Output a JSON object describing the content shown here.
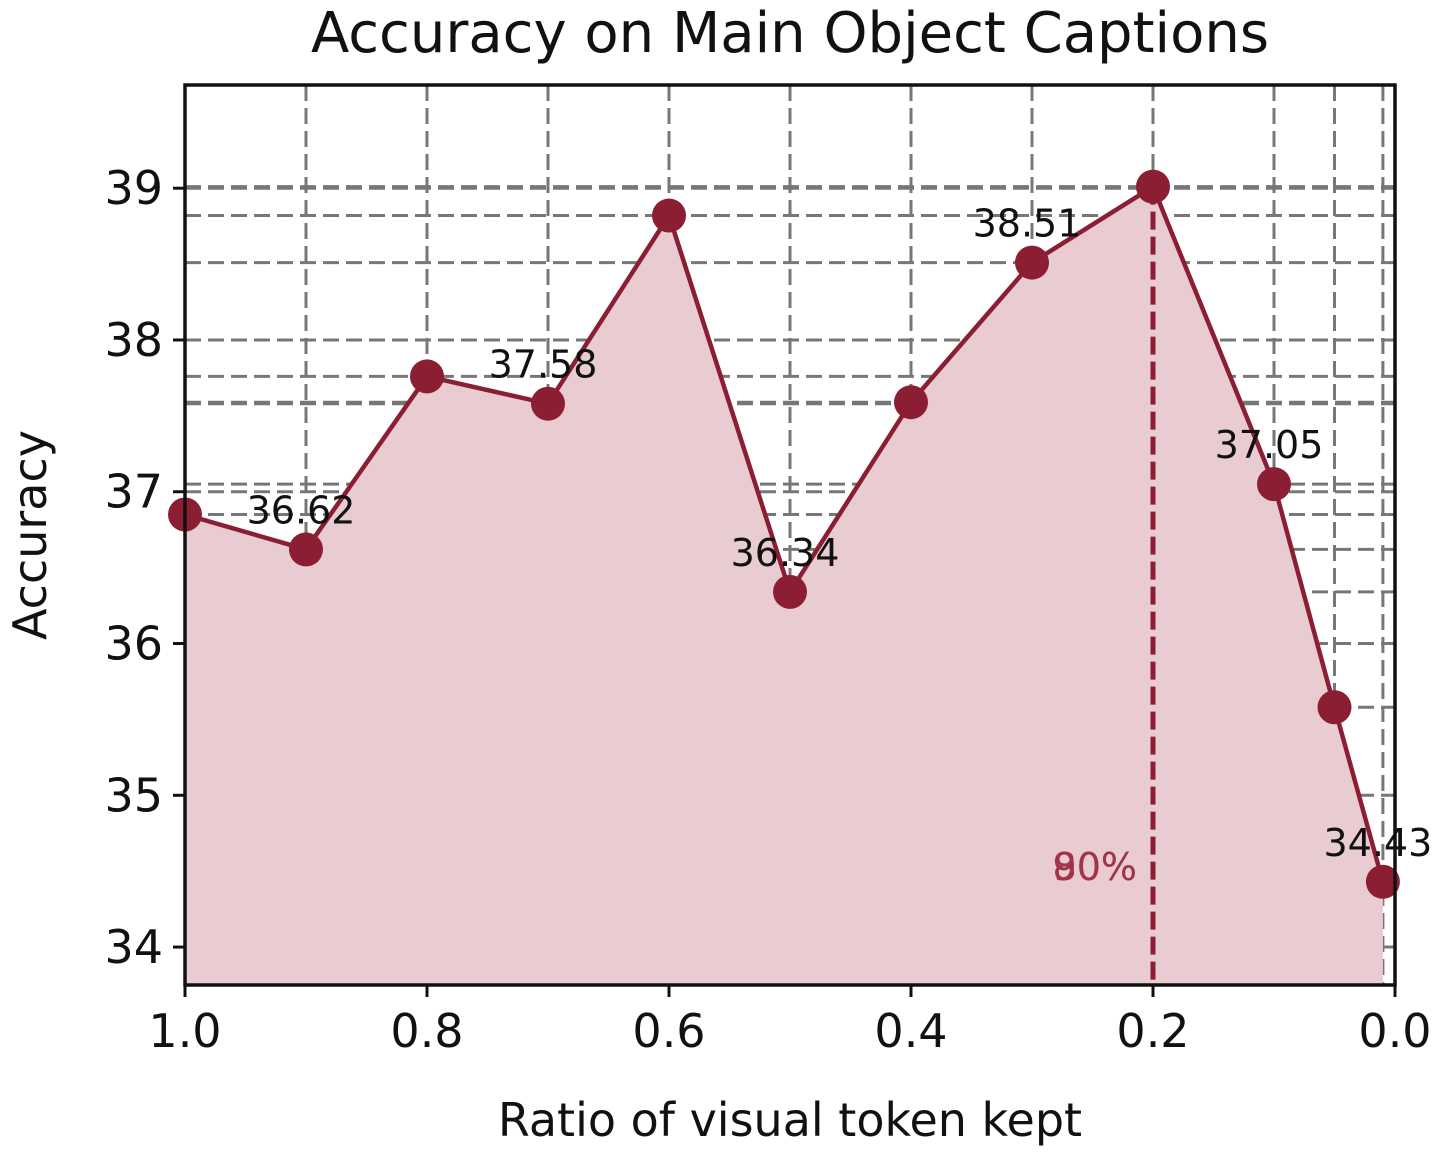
{
  "chart_data": {
    "type": "line",
    "title": "Accuracy on Main Object Captions",
    "xlabel": "Ratio of visual token kept",
    "ylabel": "Accuracy",
    "xlim": [
      1.0,
      0.0
    ],
    "ylim": [
      33.75,
      39.68
    ],
    "x_ticks": [
      1.0,
      0.8,
      0.6,
      0.4,
      0.2,
      0.0
    ],
    "x_tick_labels": [
      "1.0",
      "0.8",
      "0.6",
      "0.4",
      "0.2",
      "0.0"
    ],
    "y_ticks": [
      34,
      35,
      36,
      37,
      38,
      39
    ],
    "y_tick_labels": [
      "34",
      "35",
      "36",
      "37",
      "38",
      "39"
    ],
    "grid": true,
    "line_color": "#8b1e32",
    "fill_color": "#e8ccd2",
    "series": [
      {
        "x": [
          1.0,
          0.9,
          0.8,
          0.7,
          0.6,
          0.5,
          0.4,
          0.3,
          0.2,
          0.1,
          0.05,
          0.01
        ],
        "values": [
          36.85,
          36.62,
          37.76,
          37.58,
          38.82,
          36.34,
          37.59,
          38.51,
          39.01,
          37.05,
          35.58,
          34.43
        ]
      }
    ],
    "point_labels": [
      {
        "x": 0.9,
        "y": 36.62,
        "text": "36.62"
      },
      {
        "x": 0.7,
        "y": 37.58,
        "text": "37.58"
      },
      {
        "x": 0.5,
        "y": 36.34,
        "text": "36.34"
      },
      {
        "x": 0.3,
        "y": 38.51,
        "text": "38.51"
      },
      {
        "x": 0.1,
        "y": 37.05,
        "text": "37.05"
      },
      {
        "x": 0.01,
        "y": 34.43,
        "text": "34.43"
      }
    ],
    "threshold": {
      "x": 0.2,
      "labels": [
        "90%",
        "80%"
      ],
      "color": "#a33447"
    }
  }
}
